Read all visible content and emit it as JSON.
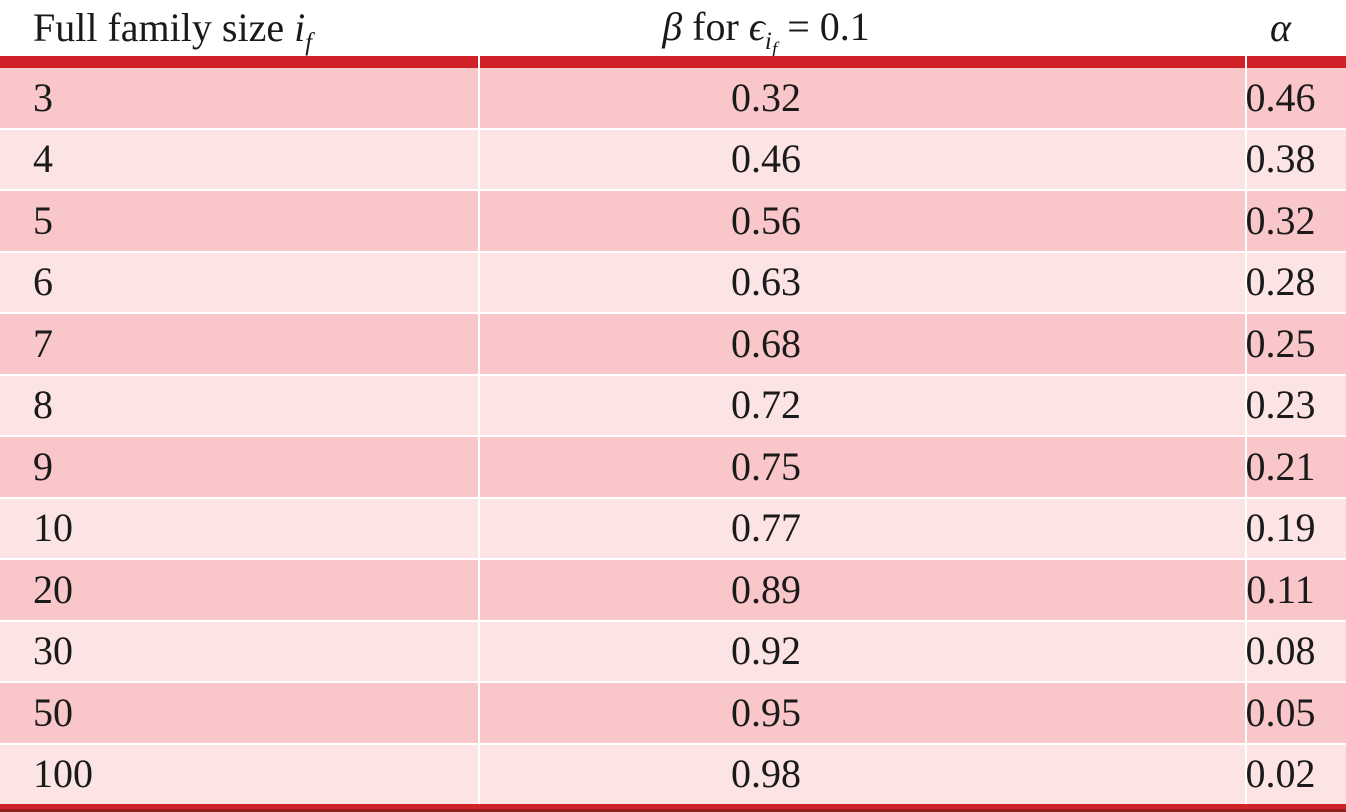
{
  "colors": {
    "accent_red": "#cf2127",
    "accent_dark_red": "#8f1d21",
    "row_dark_pink": "#f9c6c9",
    "row_light_pink": "#fce3e4"
  },
  "table": {
    "headers": {
      "family_size": {
        "text": "Full family size ",
        "var": "i",
        "var_sub": "f"
      },
      "beta": {
        "beta": "β",
        "for_text": " for ",
        "epsilon": "ϵ",
        "epsilon_sub": "i",
        "epsilon_sub_sub": "f",
        "equals_value": "= 0.1"
      },
      "alpha": {
        "alpha": "α"
      }
    },
    "rows": [
      {
        "family_size": "3",
        "beta": "0.32",
        "alpha": "0.46"
      },
      {
        "family_size": "4",
        "beta": "0.46",
        "alpha": "0.38"
      },
      {
        "family_size": "5",
        "beta": "0.56",
        "alpha": "0.32"
      },
      {
        "family_size": "6",
        "beta": "0.63",
        "alpha": "0.28"
      },
      {
        "family_size": "7",
        "beta": "0.68",
        "alpha": "0.25"
      },
      {
        "family_size": "8",
        "beta": "0.72",
        "alpha": "0.23"
      },
      {
        "family_size": "9",
        "beta": "0.75",
        "alpha": "0.21"
      },
      {
        "family_size": "10",
        "beta": "0.77",
        "alpha": "0.19"
      },
      {
        "family_size": "20",
        "beta": "0.89",
        "alpha": "0.11"
      },
      {
        "family_size": "30",
        "beta": "0.92",
        "alpha": "0.08"
      },
      {
        "family_size": "50",
        "beta": "0.95",
        "alpha": "0.05"
      },
      {
        "family_size": "100",
        "beta": "0.98",
        "alpha": "0.02"
      }
    ]
  }
}
